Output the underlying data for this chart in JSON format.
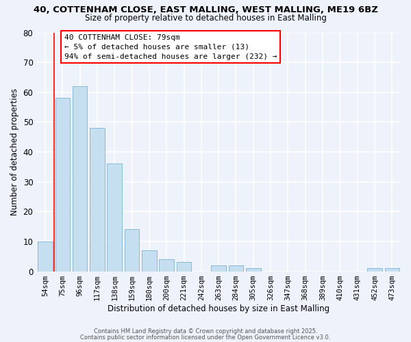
{
  "title": "40, COTTENHAM CLOSE, EAST MALLING, WEST MALLING, ME19 6BZ",
  "subtitle": "Size of property relative to detached houses in East Malling",
  "xlabel": "Distribution of detached houses by size in East Malling",
  "ylabel": "Number of detached properties",
  "bar_color": "#c5dff0",
  "bar_edge_color": "#8ab8d4",
  "background_color": "#eef2fa",
  "categories": [
    "54sqm",
    "75sqm",
    "96sqm",
    "117sqm",
    "138sqm",
    "159sqm",
    "180sqm",
    "200sqm",
    "221sqm",
    "242sqm",
    "263sqm",
    "284sqm",
    "305sqm",
    "326sqm",
    "347sqm",
    "368sqm",
    "389sqm",
    "410sqm",
    "431sqm",
    "452sqm",
    "473sqm"
  ],
  "values": [
    10,
    58,
    62,
    48,
    36,
    14,
    7,
    4,
    3,
    0,
    2,
    2,
    1,
    0,
    0,
    0,
    0,
    0,
    0,
    1,
    1
  ],
  "ylim": [
    0,
    80
  ],
  "yticks": [
    0,
    10,
    20,
    30,
    40,
    50,
    60,
    70,
    80
  ],
  "red_line_index": 1,
  "annotation_title": "40 COTTENHAM CLOSE: 79sqm",
  "annotation_line1": "← 5% of detached houses are smaller (13)",
  "annotation_line2": "94% of semi-detached houses are larger (232) →",
  "footer1": "Contains HM Land Registry data © Crown copyright and database right 2025.",
  "footer2": "Contains public sector information licensed under the Open Government Licence v3.0."
}
